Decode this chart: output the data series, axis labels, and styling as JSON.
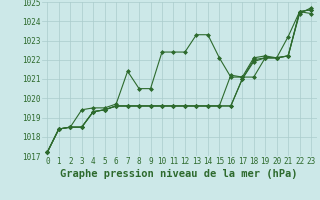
{
  "title": "Graphe pression niveau de la mer (hPa)",
  "x_labels": [
    "0",
    "1",
    "2",
    "3",
    "4",
    "5",
    "6",
    "7",
    "8",
    "9",
    "10",
    "11",
    "12",
    "13",
    "14",
    "15",
    "16",
    "17",
    "18",
    "19",
    "20",
    "21",
    "22",
    "23"
  ],
  "ylim": [
    1017,
    1025
  ],
  "yticks": [
    1017,
    1018,
    1019,
    1020,
    1021,
    1022,
    1023,
    1024,
    1025
  ],
  "series": [
    [
      1017.2,
      1018.4,
      1018.5,
      1019.4,
      1019.5,
      1019.5,
      1019.7,
      1021.4,
      1020.5,
      1020.5,
      1022.4,
      1022.4,
      1022.4,
      1023.3,
      1023.3,
      1022.1,
      1021.1,
      1021.1,
      1022.1,
      1022.2,
      1022.1,
      1023.2,
      1024.5,
      1024.4
    ],
    [
      1017.2,
      1018.4,
      1018.5,
      1018.5,
      1019.3,
      1019.4,
      1019.6,
      1019.6,
      1019.6,
      1019.6,
      1019.6,
      1019.6,
      1019.6,
      1019.6,
      1019.6,
      1019.6,
      1019.6,
      1021.0,
      1022.0,
      1022.1,
      1022.1,
      1022.2,
      1024.5,
      1024.6
    ],
    [
      1017.2,
      1018.4,
      1018.5,
      1018.5,
      1019.3,
      1019.4,
      1019.6,
      1019.6,
      1019.6,
      1019.6,
      1019.6,
      1019.6,
      1019.6,
      1019.6,
      1019.6,
      1019.6,
      1021.2,
      1021.1,
      1021.1,
      1022.1,
      1022.1,
      1022.2,
      1024.5,
      1024.6
    ],
    [
      1017.2,
      1018.4,
      1018.5,
      1018.5,
      1019.3,
      1019.4,
      1019.6,
      1019.6,
      1019.6,
      1019.6,
      1019.6,
      1019.6,
      1019.6,
      1019.6,
      1019.6,
      1019.6,
      1019.6,
      1021.0,
      1021.9,
      1022.1,
      1022.1,
      1022.2,
      1024.4,
      1024.7
    ]
  ],
  "line_color": "#2d6a2d",
  "bg_color": "#cce8e8",
  "grid_color": "#aacccc",
  "label_color": "#2d6a2d",
  "title_color": "#2d6a2d",
  "marker": "D",
  "markersize": 2.0,
  "linewidth": 0.8,
  "title_fontsize": 7.5,
  "tick_fontsize": 5.5
}
